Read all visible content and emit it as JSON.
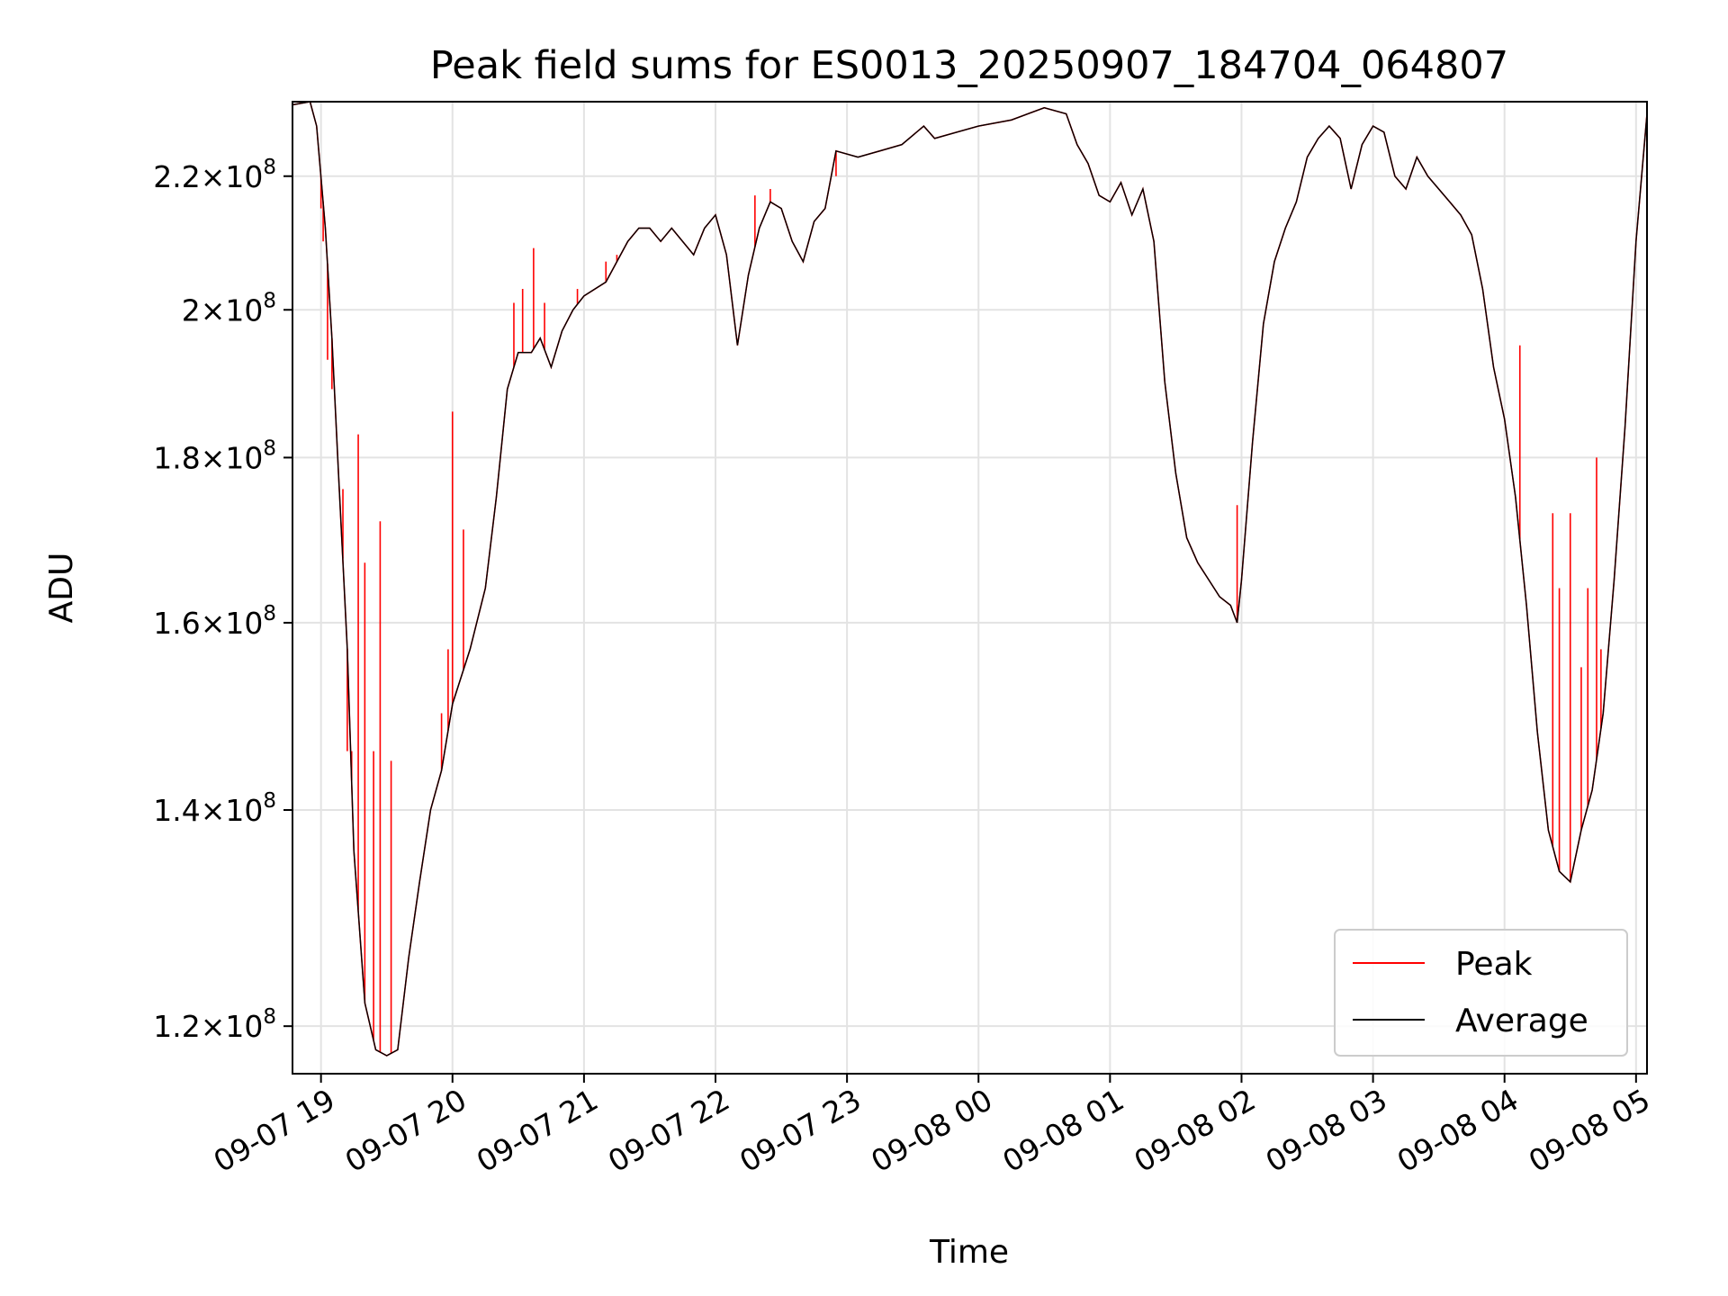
{
  "chart_data": {
    "type": "line",
    "title": "Peak field sums for ES0013_20250907_184704_064807",
    "xlabel": "Time",
    "ylabel": "ADU",
    "x_range": [
      "2025-09-07 18:47",
      "2025-09-08 05:05"
    ],
    "y_scale": "log",
    "ylim": [
      116000000,
      232000000
    ],
    "grid": true,
    "legend_position": "lower right",
    "x_ticks": [
      {
        "value": "2025-09-07 19:00",
        "label": "09-07 19"
      },
      {
        "value": "2025-09-07 20:00",
        "label": "09-07 20"
      },
      {
        "value": "2025-09-07 21:00",
        "label": "09-07 21"
      },
      {
        "value": "2025-09-07 22:00",
        "label": "09-07 22"
      },
      {
        "value": "2025-09-07 23:00",
        "label": "09-07 23"
      },
      {
        "value": "2025-09-08 00:00",
        "label": "09-08 00"
      },
      {
        "value": "2025-09-08 01:00",
        "label": "09-08 01"
      },
      {
        "value": "2025-09-08 02:00",
        "label": "09-08 02"
      },
      {
        "value": "2025-09-08 03:00",
        "label": "09-08 03"
      },
      {
        "value": "2025-09-08 04:00",
        "label": "09-08 04"
      },
      {
        "value": "2025-09-08 05:00",
        "label": "09-08 05"
      }
    ],
    "y_ticks": [
      {
        "value": 120000000,
        "mantissa": "1.2",
        "exponent": "8"
      },
      {
        "value": 140000000,
        "mantissa": "1.4",
        "exponent": "8"
      },
      {
        "value": 160000000,
        "mantissa": "1.6",
        "exponent": "8"
      },
      {
        "value": 180000000,
        "mantissa": "1.8",
        "exponent": "8"
      },
      {
        "value": 200000000,
        "mantissa": "2",
        "exponent": "8"
      },
      {
        "value": 220000000,
        "mantissa": "2.2",
        "exponent": "8"
      }
    ],
    "times": [
      "2025-09-07 18:47",
      "2025-09-07 18:55",
      "2025-09-07 18:58",
      "2025-09-07 19:02",
      "2025-09-07 19:05",
      "2025-09-07 19:08",
      "2025-09-07 19:12",
      "2025-09-07 19:15",
      "2025-09-07 19:20",
      "2025-09-07 19:25",
      "2025-09-07 19:30",
      "2025-09-07 19:35",
      "2025-09-07 19:40",
      "2025-09-07 19:45",
      "2025-09-07 19:50",
      "2025-09-07 19:55",
      "2025-09-07 20:00",
      "2025-09-07 20:08",
      "2025-09-07 20:15",
      "2025-09-07 20:20",
      "2025-09-07 20:25",
      "2025-09-07 20:30",
      "2025-09-07 20:36",
      "2025-09-07 20:40",
      "2025-09-07 20:45",
      "2025-09-07 20:50",
      "2025-09-07 20:55",
      "2025-09-07 21:00",
      "2025-09-07 21:10",
      "2025-09-07 21:20",
      "2025-09-07 21:25",
      "2025-09-07 21:30",
      "2025-09-07 21:35",
      "2025-09-07 21:40",
      "2025-09-07 21:50",
      "2025-09-07 21:55",
      "2025-09-07 22:00",
      "2025-09-07 22:05",
      "2025-09-07 22:10",
      "2025-09-07 22:15",
      "2025-09-07 22:20",
      "2025-09-07 22:25",
      "2025-09-07 22:30",
      "2025-09-07 22:35",
      "2025-09-07 22:40",
      "2025-09-07 22:45",
      "2025-09-07 22:50",
      "2025-09-07 22:55",
      "2025-09-07 23:05",
      "2025-09-07 23:15",
      "2025-09-07 23:25",
      "2025-09-07 23:35",
      "2025-09-07 23:40",
      "2025-09-07 23:50",
      "2025-09-08 00:00",
      "2025-09-08 00:15",
      "2025-09-08 00:30",
      "2025-09-08 00:40",
      "2025-09-08 00:45",
      "2025-09-08 00:50",
      "2025-09-08 00:55",
      "2025-09-08 01:00",
      "2025-09-08 01:05",
      "2025-09-08 01:10",
      "2025-09-08 01:15",
      "2025-09-08 01:20",
      "2025-09-08 01:25",
      "2025-09-08 01:30",
      "2025-09-08 01:35",
      "2025-09-08 01:40",
      "2025-09-08 01:45",
      "2025-09-08 01:50",
      "2025-09-08 01:55",
      "2025-09-08 01:58",
      "2025-09-08 02:00",
      "2025-09-08 02:05",
      "2025-09-08 02:10",
      "2025-09-08 02:15",
      "2025-09-08 02:20",
      "2025-09-08 02:25",
      "2025-09-08 02:30",
      "2025-09-08 02:35",
      "2025-09-08 02:40",
      "2025-09-08 02:45",
      "2025-09-08 02:50",
      "2025-09-08 02:55",
      "2025-09-08 03:00",
      "2025-09-08 03:05",
      "2025-09-08 03:10",
      "2025-09-08 03:15",
      "2025-09-08 03:20",
      "2025-09-08 03:25",
      "2025-09-08 03:30",
      "2025-09-08 03:35",
      "2025-09-08 03:40",
      "2025-09-08 03:45",
      "2025-09-08 03:50",
      "2025-09-08 03:55",
      "2025-09-08 04:00",
      "2025-09-08 04:05",
      "2025-09-08 04:10",
      "2025-09-08 04:15",
      "2025-09-08 04:20",
      "2025-09-08 04:25",
      "2025-09-08 04:30",
      "2025-09-08 04:35",
      "2025-09-08 04:40",
      "2025-09-08 04:45",
      "2025-09-08 04:50",
      "2025-09-08 04:55",
      "2025-09-08 05:00",
      "2025-09-08 05:05"
    ],
    "series": [
      {
        "name": "Average",
        "color": "#000000",
        "values": [
          231500000,
          232000000,
          228000000,
          212000000,
          196000000,
          178000000,
          157000000,
          136000000,
          122000000,
          118000000,
          117500000,
          118000000,
          126000000,
          133000000,
          140000000,
          144000000,
          151000000,
          157000000,
          164000000,
          175000000,
          189000000,
          194000000,
          194000000,
          196000000,
          192000000,
          197000000,
          200000000,
          202000000,
          204000000,
          210000000,
          212000000,
          212000000,
          210000000,
          212000000,
          208000000,
          212000000,
          214000000,
          208000000,
          195000000,
          205000000,
          212000000,
          216000000,
          215000000,
          210000000,
          207000000,
          213000000,
          215000000,
          224000000,
          223000000,
          224000000,
          225000000,
          228000000,
          226000000,
          227000000,
          228000000,
          229000000,
          231000000,
          230000000,
          225000000,
          222000000,
          217000000,
          216000000,
          219000000,
          214000000,
          218000000,
          210000000,
          190000000,
          178000000,
          170000000,
          167000000,
          165000000,
          163000000,
          162000000,
          160000000,
          165000000,
          182000000,
          198000000,
          207000000,
          212000000,
          216000000,
          223000000,
          226000000,
          228000000,
          226000000,
          218000000,
          225000000,
          228000000,
          227000000,
          220000000,
          218000000,
          223000000,
          220000000,
          218000000,
          216000000,
          214000000,
          211000000,
          203000000,
          192000000,
          185000000,
          175000000,
          162000000,
          148000000,
          138000000,
          134000000,
          133000000,
          138000000,
          142000000,
          150000000,
          165000000,
          184000000,
          210000000,
          230000000
        ]
      },
      {
        "name": "Peak",
        "color": "#ff0000",
        "spikes": [
          {
            "time": "2025-09-07 19:00",
            "value": 215000000
          },
          {
            "time": "2025-09-07 19:01",
            "value": 210000000
          },
          {
            "time": "2025-09-07 19:03",
            "value": 193000000
          },
          {
            "time": "2025-09-07 19:05",
            "value": 189000000
          },
          {
            "time": "2025-09-07 19:10",
            "value": 176000000
          },
          {
            "time": "2025-09-07 19:12",
            "value": 146000000
          },
          {
            "time": "2025-09-07 19:14",
            "value": 146000000
          },
          {
            "time": "2025-09-07 19:17",
            "value": 183000000
          },
          {
            "time": "2025-09-07 19:20",
            "value": 167000000
          },
          {
            "time": "2025-09-07 19:24",
            "value": 146000000
          },
          {
            "time": "2025-09-07 19:27",
            "value": 172000000
          },
          {
            "time": "2025-09-07 19:32",
            "value": 145000000
          },
          {
            "time": "2025-09-07 19:55",
            "value": 150000000
          },
          {
            "time": "2025-09-07 19:58",
            "value": 157000000
          },
          {
            "time": "2025-09-07 20:00",
            "value": 186000000
          },
          {
            "time": "2025-09-07 20:05",
            "value": 171000000
          },
          {
            "time": "2025-09-07 20:28",
            "value": 201000000
          },
          {
            "time": "2025-09-07 20:32",
            "value": 203000000
          },
          {
            "time": "2025-09-07 20:37",
            "value": 209000000
          },
          {
            "time": "2025-09-07 20:42",
            "value": 201000000
          },
          {
            "time": "2025-09-07 20:57",
            "value": 203000000
          },
          {
            "time": "2025-09-07 21:10",
            "value": 207000000
          },
          {
            "time": "2025-09-07 21:15",
            "value": 208000000
          },
          {
            "time": "2025-09-07 22:18",
            "value": 217000000
          },
          {
            "time": "2025-09-07 22:25",
            "value": 218000000
          },
          {
            "time": "2025-09-07 22:55",
            "value": 220000000
          },
          {
            "time": "2025-09-08 01:58",
            "value": 174000000
          },
          {
            "time": "2025-09-08 04:07",
            "value": 195000000
          },
          {
            "time": "2025-09-08 04:22",
            "value": 173000000
          },
          {
            "time": "2025-09-08 04:25",
            "value": 164000000
          },
          {
            "time": "2025-09-08 04:30",
            "value": 173000000
          },
          {
            "time": "2025-09-08 04:35",
            "value": 155000000
          },
          {
            "time": "2025-09-08 04:38",
            "value": 164000000
          },
          {
            "time": "2025-09-08 04:42",
            "value": 180000000
          },
          {
            "time": "2025-09-08 04:44",
            "value": 157000000
          }
        ]
      }
    ],
    "legend": [
      {
        "label": "Peak",
        "color": "#ff0000"
      },
      {
        "label": "Average",
        "color": "#000000"
      }
    ]
  }
}
